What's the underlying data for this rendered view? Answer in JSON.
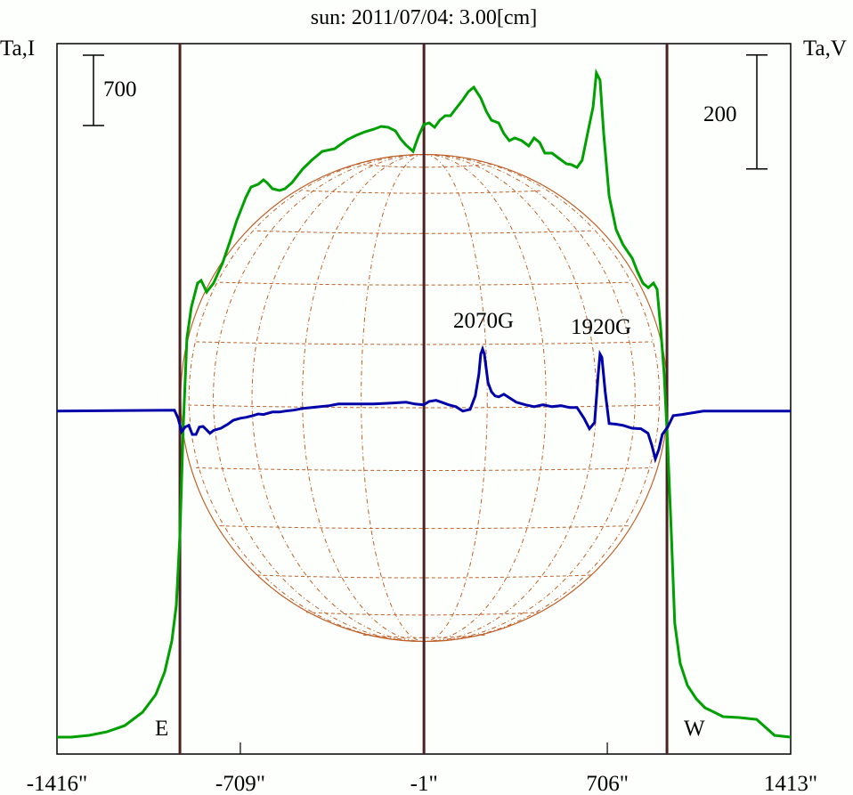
{
  "chart_data": {
    "type": "line",
    "title": "sun: 2011/07/04: 3.00[cm]",
    "left_axis_label": "Ta,I",
    "right_axis_label": "Ta,V",
    "x_unit": "arcsec",
    "xlim": [
      -1416,
      1413
    ],
    "x_ticks": [
      {
        "value": -1416,
        "label": "-1416\""
      },
      {
        "value": -709,
        "label": "-709\""
      },
      {
        "value": -1,
        "label": "-1\""
      },
      {
        "value": 706,
        "label": "706\""
      },
      {
        "value": 1413,
        "label": "1413\""
      }
    ],
    "limb_lines": [
      -942,
      -1,
      936
    ],
    "limb_labels": {
      "east": "E",
      "west": "W"
    },
    "ylim_I": [
      -168,
      6902
    ],
    "ylim_V": [
      -602,
      645
    ],
    "scale_bars": {
      "I": {
        "value": 700,
        "label": "700"
      },
      "V": {
        "value": 200,
        "label": "200"
      }
    },
    "annotations": [
      {
        "text": "2070G",
        "x": 225
      },
      {
        "text": "1920G",
        "x": 680
      }
    ],
    "colors": {
      "I": "#00a000",
      "V": "#0000a8",
      "limb": "#4a2222",
      "disk": "#c0602a",
      "title": "#1c1c6a"
    },
    "series": [
      {
        "name": "I",
        "x": [
          -1416,
          -1361,
          -1292,
          -1224,
          -1155,
          -1086,
          -1035,
          -1001,
          -973,
          -956,
          -942,
          -929,
          -915,
          -898,
          -874,
          -860,
          -839,
          -812,
          -777,
          -750,
          -723,
          -688,
          -668,
          -640,
          -620,
          -606,
          -585,
          -558,
          -537,
          -510,
          -469,
          -434,
          -393,
          -345,
          -297,
          -263,
          -228,
          -194,
          -166,
          -139,
          -111,
          -91,
          -70,
          -43,
          -22,
          -2,
          19,
          40,
          60,
          81,
          101,
          122,
          149,
          170,
          191,
          218,
          239,
          259,
          287,
          307,
          328,
          349,
          376,
          403,
          424,
          445,
          465,
          493,
          520,
          548,
          568,
          589,
          609,
          630,
          651,
          664,
          678,
          692,
          713,
          740,
          767,
          802,
          822,
          843,
          864,
          884,
          898,
          912,
          925,
          939,
          953,
          966,
          987,
          1015,
          1049,
          1083,
          1118,
          1152,
          1214,
          1282,
          1351,
          1413
        ],
        "y": [
          0,
          0,
          18,
          53,
          115,
          248,
          425,
          647,
          957,
          1311,
          2020,
          3083,
          3969,
          4279,
          4519,
          4545,
          4430,
          4519,
          4722,
          4926,
          5139,
          5369,
          5475,
          5502,
          5546,
          5518,
          5458,
          5440,
          5458,
          5518,
          5653,
          5741,
          5830,
          5856,
          5945,
          5989,
          6025,
          6051,
          6078,
          6069,
          6034,
          5954,
          5892,
          5830,
          5981,
          6096,
          6113,
          6069,
          6140,
          6184,
          6184,
          6255,
          6344,
          6424,
          6468,
          6361,
          6229,
          6140,
          6113,
          6007,
          5936,
          5963,
          5936,
          5883,
          5963,
          5918,
          5812,
          5812,
          5759,
          5706,
          5697,
          5670,
          5741,
          6007,
          6273,
          6610,
          6539,
          6007,
          5387,
          5050,
          4900,
          4767,
          4634,
          4519,
          4474,
          4519,
          4457,
          4058,
          3615,
          2906,
          2020,
          1134,
          735,
          514,
          381,
          292,
          248,
          204,
          195,
          177,
          18,
          0
        ]
      },
      {
        "name": "V",
        "x": [
          -1416,
          -963,
          -949,
          -935,
          -922,
          -908,
          -894,
          -880,
          -867,
          -853,
          -839,
          -826,
          -812,
          -784,
          -757,
          -736,
          -709,
          -688,
          -661,
          -640,
          -620,
          -585,
          -558,
          -537,
          -503,
          -469,
          -434,
          -400,
          -366,
          -331,
          -263,
          -194,
          -125,
          -70,
          -36,
          -2,
          19,
          46,
          67,
          94,
          122,
          149,
          177,
          197,
          211,
          218,
          225,
          232,
          246,
          259,
          273,
          287,
          307,
          328,
          355,
          390,
          424,
          458,
          493,
          527,
          561,
          589,
          616,
          637,
          657,
          671,
          678,
          685,
          698,
          713,
          740,
          767,
          802,
          836,
          863,
          877,
          891,
          905,
          918,
          939,
          960,
          994,
          1076,
          1413
        ],
        "y": [
          0,
          1.6,
          -12.5,
          -36,
          -28,
          -25,
          -41,
          -41,
          -28,
          -27,
          -33,
          -39,
          -34,
          -30,
          -23,
          -16,
          -12.5,
          -11,
          -8,
          -5,
          -6,
          -1.6,
          -1.6,
          0,
          1.6,
          4.7,
          6.3,
          7.8,
          9.4,
          12.5,
          12.5,
          12.5,
          14,
          15.6,
          12.5,
          11,
          17,
          18.8,
          15.6,
          11,
          7.8,
          0,
          3,
          26.6,
          65.6,
          100,
          109,
          100,
          50,
          34,
          26.6,
          25,
          29.7,
          23.4,
          15.6,
          11,
          7.8,
          11,
          7.8,
          9.4,
          6.3,
          6.3,
          -12.5,
          -31,
          -20,
          65.6,
          100,
          94,
          34,
          -22,
          -23,
          -25,
          -30,
          -31,
          -39,
          -59,
          -84,
          -67,
          -41,
          -28,
          -8,
          -6,
          0,
          0
        ]
      }
    ]
  }
}
